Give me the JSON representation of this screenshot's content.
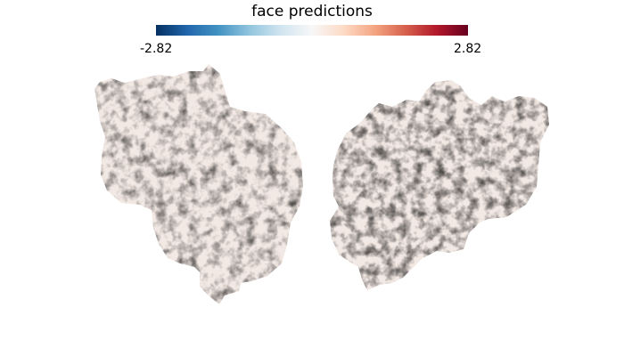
{
  "figure": {
    "title": "face predictions",
    "colorbar": {
      "min_label": "-2.82",
      "max_label": "2.82",
      "vmin": -2.82,
      "vmax": 2.82,
      "colormap": "RdBu_r",
      "stops": [
        "#053061",
        "#2166ac",
        "#4393c3",
        "#92c5de",
        "#d1e5f0",
        "#f7f7f7",
        "#fddbc7",
        "#f4a582",
        "#d6604d",
        "#b2182b",
        "#67001f"
      ]
    },
    "panels": [
      {
        "name": "left-hemisphere-flatmap"
      },
      {
        "name": "right-hemisphere-flatmap"
      }
    ]
  }
}
